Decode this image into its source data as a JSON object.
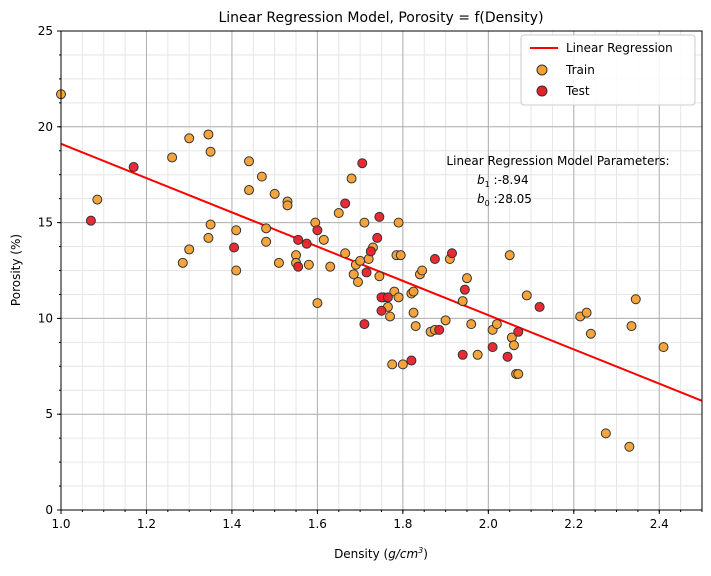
{
  "chart_data": {
    "type": "scatter",
    "title": "Linear Regression Model, Porosity = f(Density)",
    "xlabel_prefix": "Density (",
    "xlabel_unit_base": "g/cm",
    "xlabel_unit_exp": "3",
    "xlabel_suffix": ")",
    "ylabel": "Porosity (%)",
    "xlim": [
      1.0,
      2.5
    ],
    "ylim": [
      0,
      25
    ],
    "xticks": [
      1.0,
      1.2,
      1.4,
      1.6,
      1.8,
      2.0,
      2.2,
      2.4
    ],
    "xtick_labels": [
      "1.0",
      "1.2",
      "1.4",
      "1.6",
      "1.8",
      "2.0",
      "2.2",
      "2.4"
    ],
    "yticks": [
      0,
      5,
      10,
      15,
      20,
      25
    ],
    "ytick_labels": [
      "0",
      "5",
      "10",
      "15",
      "20",
      "25"
    ],
    "grid": true,
    "legend_placement": "top-right",
    "colors": {
      "line": "#ff0000",
      "train": "#f5a032",
      "test": "#e8202a",
      "edge": "#333333"
    },
    "annotation": {
      "heading": "Linear Regression Model Parameters:",
      "b1_label": "b",
      "b1_sub": "1",
      "b1_value": " :-8.94",
      "b0_label": "b",
      "b0_sub": "0",
      "b0_value": " :28.05"
    },
    "line": {
      "name": "Linear Regression",
      "slope": -8.94,
      "intercept": 28.05
    },
    "series": [
      {
        "name": "Train",
        "points": [
          [
            1.0,
            21.7
          ],
          [
            1.085,
            16.2
          ],
          [
            1.26,
            18.4
          ],
          [
            1.285,
            12.9
          ],
          [
            1.3,
            19.4
          ],
          [
            1.3,
            13.6
          ],
          [
            1.345,
            19.6
          ],
          [
            1.35,
            18.7
          ],
          [
            1.35,
            14.9
          ],
          [
            1.345,
            14.2
          ],
          [
            1.41,
            14.6
          ],
          [
            1.41,
            12.5
          ],
          [
            1.44,
            18.2
          ],
          [
            1.44,
            16.7
          ],
          [
            1.47,
            17.4
          ],
          [
            1.48,
            14.0
          ],
          [
            1.48,
            14.7
          ],
          [
            1.5,
            16.5
          ],
          [
            1.51,
            12.9
          ],
          [
            1.53,
            16.1
          ],
          [
            1.53,
            15.9
          ],
          [
            1.55,
            13.3
          ],
          [
            1.55,
            12.9
          ],
          [
            1.58,
            12.8
          ],
          [
            1.595,
            15.0
          ],
          [
            1.6,
            10.8
          ],
          [
            1.615,
            14.1
          ],
          [
            1.63,
            12.7
          ],
          [
            1.65,
            15.5
          ],
          [
            1.665,
            13.4
          ],
          [
            1.68,
            17.3
          ],
          [
            1.685,
            12.3
          ],
          [
            1.69,
            12.8
          ],
          [
            1.695,
            11.9
          ],
          [
            1.7,
            13.0
          ],
          [
            1.71,
            15.0
          ],
          [
            1.72,
            13.1
          ],
          [
            1.73,
            13.7
          ],
          [
            1.745,
            12.2
          ],
          [
            1.755,
            11.1
          ],
          [
            1.765,
            10.6
          ],
          [
            1.77,
            10.1
          ],
          [
            1.775,
            7.6
          ],
          [
            1.78,
            11.4
          ],
          [
            1.785,
            13.3
          ],
          [
            1.79,
            15.0
          ],
          [
            1.79,
            11.1
          ],
          [
            1.795,
            13.3
          ],
          [
            1.8,
            7.6
          ],
          [
            1.82,
            11.3
          ],
          [
            1.825,
            11.4
          ],
          [
            1.825,
            10.3
          ],
          [
            1.83,
            9.6
          ],
          [
            1.84,
            12.3
          ],
          [
            1.845,
            12.5
          ],
          [
            1.865,
            9.3
          ],
          [
            1.875,
            9.4
          ],
          [
            1.9,
            9.9
          ],
          [
            1.91,
            13.1
          ],
          [
            1.94,
            10.9
          ],
          [
            1.95,
            12.1
          ],
          [
            1.96,
            9.7
          ],
          [
            1.975,
            8.1
          ],
          [
            2.01,
            9.4
          ],
          [
            2.02,
            9.7
          ],
          [
            2.05,
            13.3
          ],
          [
            2.055,
            9.0
          ],
          [
            2.06,
            8.6
          ],
          [
            2.065,
            7.1
          ],
          [
            2.07,
            7.1
          ],
          [
            2.09,
            11.2
          ],
          [
            2.215,
            10.1
          ],
          [
            2.23,
            10.3
          ],
          [
            2.24,
            9.2
          ],
          [
            2.275,
            4.0
          ],
          [
            2.33,
            3.3
          ],
          [
            2.335,
            9.6
          ],
          [
            2.345,
            11.0
          ],
          [
            2.41,
            8.5
          ]
        ]
      },
      {
        "name": "Test",
        "points": [
          [
            1.07,
            15.1
          ],
          [
            1.17,
            17.9
          ],
          [
            1.405,
            13.7
          ],
          [
            1.555,
            14.1
          ],
          [
            1.555,
            12.7
          ],
          [
            1.575,
            13.9
          ],
          [
            1.6,
            14.6
          ],
          [
            1.665,
            16.0
          ],
          [
            1.705,
            18.1
          ],
          [
            1.71,
            9.7
          ],
          [
            1.715,
            12.4
          ],
          [
            1.725,
            13.5
          ],
          [
            1.74,
            14.2
          ],
          [
            1.745,
            15.3
          ],
          [
            1.75,
            10.4
          ],
          [
            1.75,
            11.1
          ],
          [
            1.765,
            11.1
          ],
          [
            1.82,
            7.8
          ],
          [
            1.875,
            13.1
          ],
          [
            1.885,
            9.4
          ],
          [
            1.915,
            13.4
          ],
          [
            1.94,
            8.1
          ],
          [
            1.945,
            11.5
          ],
          [
            2.01,
            8.5
          ],
          [
            2.045,
            8.0
          ],
          [
            2.07,
            9.3
          ],
          [
            2.12,
            10.6
          ]
        ]
      }
    ]
  }
}
